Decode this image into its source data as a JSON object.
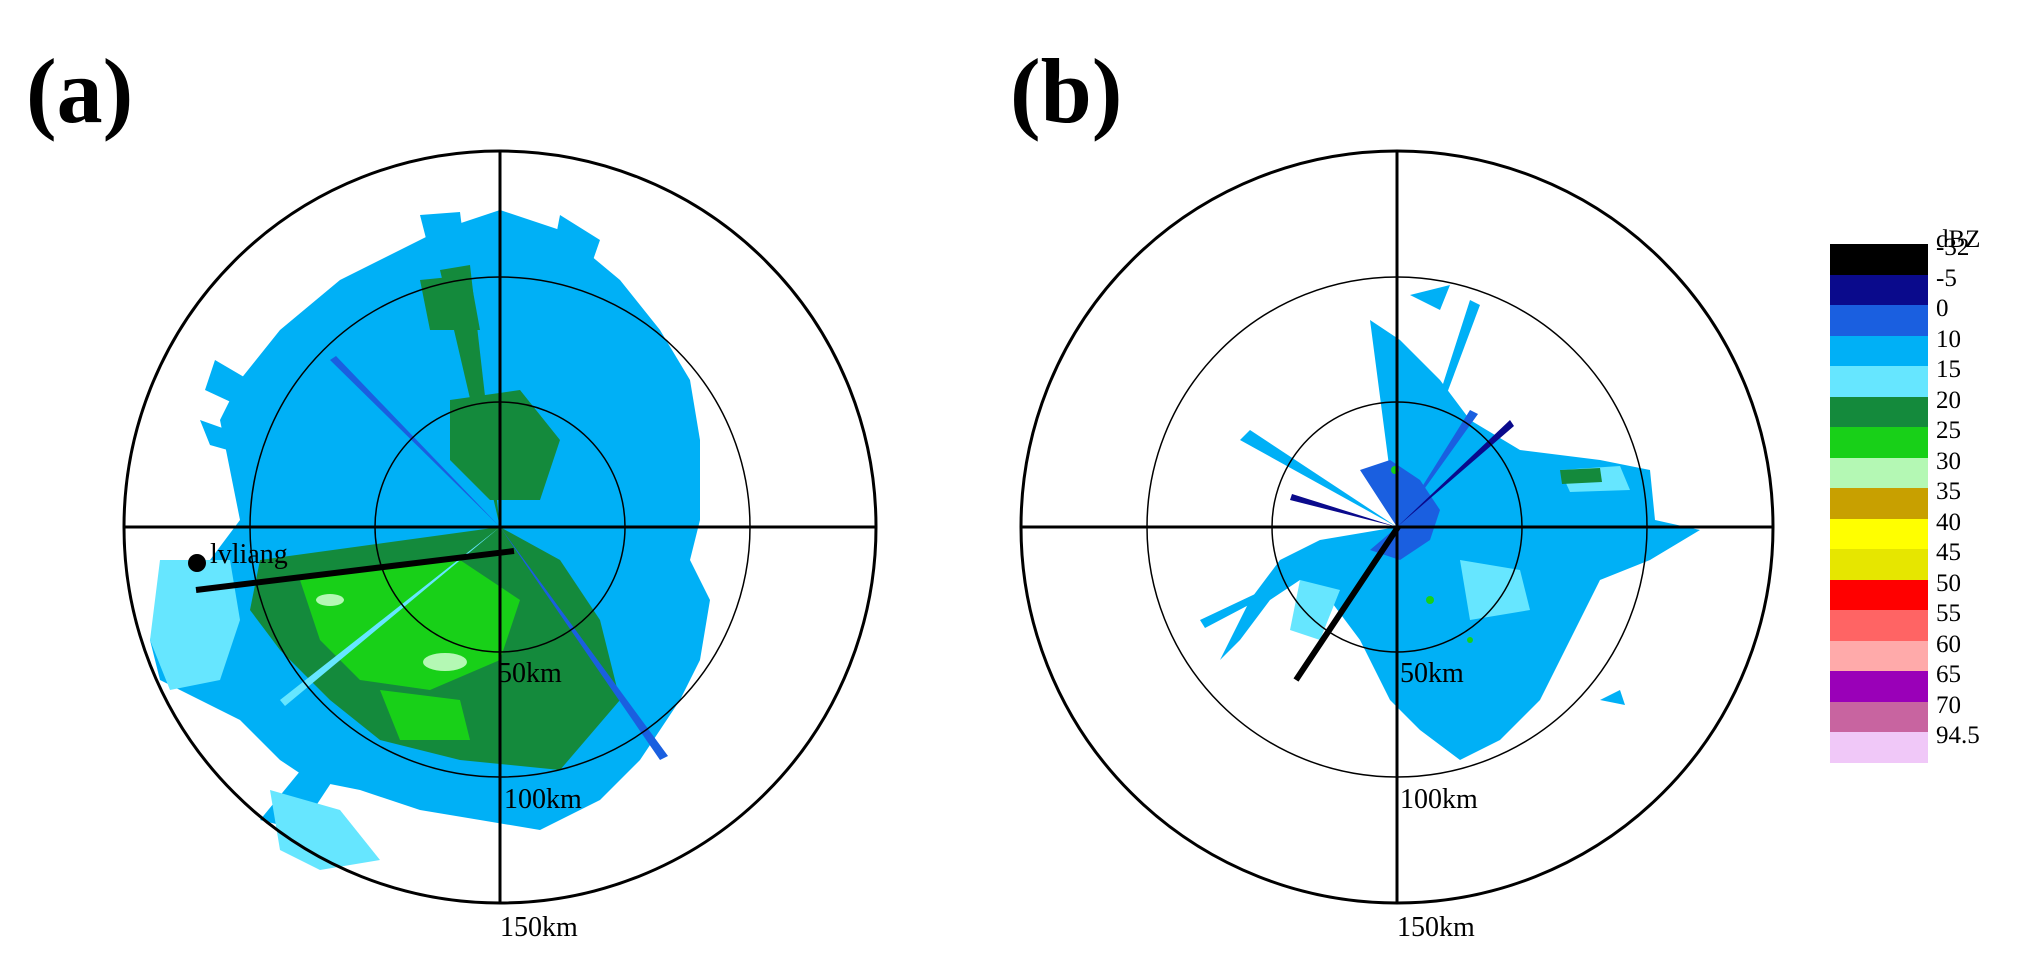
{
  "panels": [
    {
      "label": "(a)",
      "range_labels": [
        "50km",
        "100km",
        "150km"
      ],
      "site_label": "lvliang"
    },
    {
      "label": "(b)",
      "range_labels": [
        "50km",
        "100km",
        "150km"
      ]
    }
  ],
  "legend": {
    "unit": "dBZ",
    "entries": [
      {
        "value": "-32",
        "color": "#000000"
      },
      {
        "value": "-5",
        "color": "#0a0a8c"
      },
      {
        "value": "0",
        "color": "#1a5fe0"
      },
      {
        "value": "10",
        "color": "#00b0f6"
      },
      {
        "value": "15",
        "color": "#66e6ff"
      },
      {
        "value": "20",
        "color": "#148a3c"
      },
      {
        "value": "25",
        "color": "#18d018"
      },
      {
        "value": "30",
        "color": "#b4f8b4"
      },
      {
        "value": "35",
        "color": "#c8a000"
      },
      {
        "value": "40",
        "color": "#ffff00"
      },
      {
        "value": "45",
        "color": "#e6e600"
      },
      {
        "value": "50",
        "color": "#ff0000"
      },
      {
        "value": "55",
        "color": "#ff6464"
      },
      {
        "value": "60",
        "color": "#ffaaaa"
      },
      {
        "value": "65",
        "color": "#9a00b8"
      },
      {
        "value": "70",
        "color": "#c864a0"
      },
      {
        "value": "94.5",
        "color": "#f0c8f8"
      }
    ]
  }
}
